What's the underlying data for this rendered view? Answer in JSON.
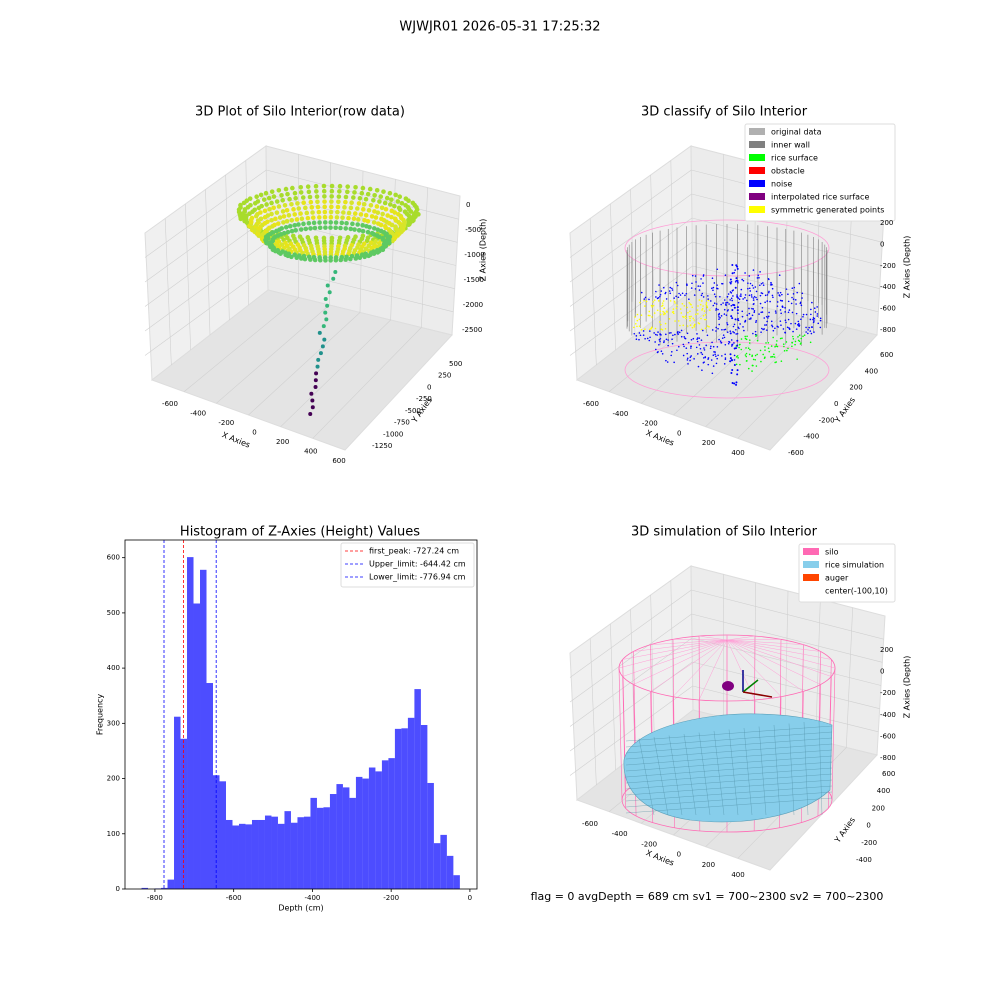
{
  "title": "WJWJR01 2026-05-31 17:25:32",
  "footer": "flag = 0     avgDepth = 689 cm  sv1 = 700~2300  sv2 = 700~2300",
  "chart_data": [
    {
      "type": "scatter3d",
      "title": "3D Plot of Silo Interior(row data)",
      "xlabel": "X Axies",
      "ylabel": "Y Axies",
      "zlabel": "Z Axies (Depth)",
      "xticks": [
        -600,
        -400,
        -200,
        0,
        200,
        400,
        600
      ],
      "yticks": [
        -1250,
        -1000,
        -750,
        -500,
        -250,
        0,
        250,
        500
      ],
      "zticks": [
        -2500,
        -2000,
        -1500,
        -1000,
        -500,
        0
      ]
    },
    {
      "type": "classify3d",
      "title": "3D classify of Silo Interior",
      "xlabel": "X Axies",
      "ylabel": "Y Axies",
      "zlabel": "Z Axies (Depth)",
      "xticks": [
        -600,
        -400,
        -200,
        0,
        200,
        400
      ],
      "yticks": [
        -600,
        -400,
        -200,
        0,
        200,
        400,
        600
      ],
      "zticks": [
        -800,
        -600,
        -400,
        -200,
        0,
        200
      ],
      "legend": [
        {
          "name": "original data",
          "color": "#b0b0b0"
        },
        {
          "name": "inner wall",
          "color": "#808080"
        },
        {
          "name": "rice surface",
          "color": "#00ff00"
        },
        {
          "name": "obstacle",
          "color": "#ff0000"
        },
        {
          "name": "noise",
          "color": "#0000ff"
        },
        {
          "name": "interpolated rice surface",
          "color": "#800080"
        },
        {
          "name": "symmetric generated points",
          "color": "#ffff00"
        }
      ]
    },
    {
      "type": "histogram",
      "title": "Histogram of Z-Axies (Height) Values",
      "xlabel": "Depth (cm)",
      "ylabel": "Frequency",
      "color": "#4d4dff",
      "bins": [
        -834,
        -817.5,
        -801,
        -784.5,
        -768,
        -751.5,
        -735,
        -718.5,
        -702,
        -685.5,
        -669,
        -652.5,
        -636,
        -619.5,
        -603,
        -586.5,
        -570,
        -553.5,
        -537,
        -520.5,
        -504,
        -487.5,
        -471,
        -454.5,
        -438,
        -421.5,
        -405,
        -388.5,
        -372,
        -355.5,
        -339,
        -322.5,
        -306,
        -289.5,
        -273,
        -256.5,
        -240,
        -223.5,
        -207,
        -190.5,
        -174,
        -157.5,
        -141,
        -124.5,
        -108,
        -91.5,
        -75,
        -58.5,
        -42,
        -25.5
      ],
      "counts": [
        2,
        0,
        1,
        2,
        17,
        312,
        272,
        601,
        517,
        578,
        373,
        206,
        195,
        125,
        115,
        118,
        117,
        125,
        125,
        133,
        131,
        118,
        141,
        120,
        130,
        131,
        165,
        147,
        148,
        172,
        190,
        184,
        165,
        203,
        200,
        220,
        213,
        233,
        237,
        290,
        291,
        310,
        362,
        297,
        192,
        83,
        98,
        60,
        25
      ],
      "xlim": [
        -876,
        18
      ],
      "ylim": [
        0,
        632
      ],
      "xticks": [
        -800,
        -600,
        -400,
        -200,
        0
      ],
      "yticks": [
        0,
        100,
        200,
        300,
        400,
        500,
        600
      ],
      "lines": [
        {
          "name": "first_peak: -727.24 cm",
          "value": -727.24,
          "color": "#ff0000"
        },
        {
          "name": "Upper_limit: -644.42 cm",
          "value": -644.42,
          "color": "#0000ff"
        },
        {
          "name": "Lower_limit: -776.94 cm",
          "value": -776.94,
          "color": "#0000ff"
        }
      ]
    },
    {
      "type": "surface3d",
      "title": "3D simulation of Silo Interior",
      "xlabel": "X Axies",
      "ylabel": "Y Axies",
      "zlabel": "Z Axies (Depth)",
      "xticks": [
        -600,
        -400,
        -200,
        0,
        200,
        400
      ],
      "yticks": [
        -400,
        -200,
        0,
        200,
        400,
        600
      ],
      "zticks": [
        -800,
        -600,
        -400,
        -200,
        0,
        200
      ],
      "legend": [
        {
          "name": "silo",
          "color": "#ff69b4"
        },
        {
          "name": "rice simulation",
          "color": "#87ceeb"
        },
        {
          "name": "auger",
          "color": "#ff4500"
        },
        {
          "name": "center(-100,10)",
          "color": "none"
        }
      ]
    }
  ]
}
